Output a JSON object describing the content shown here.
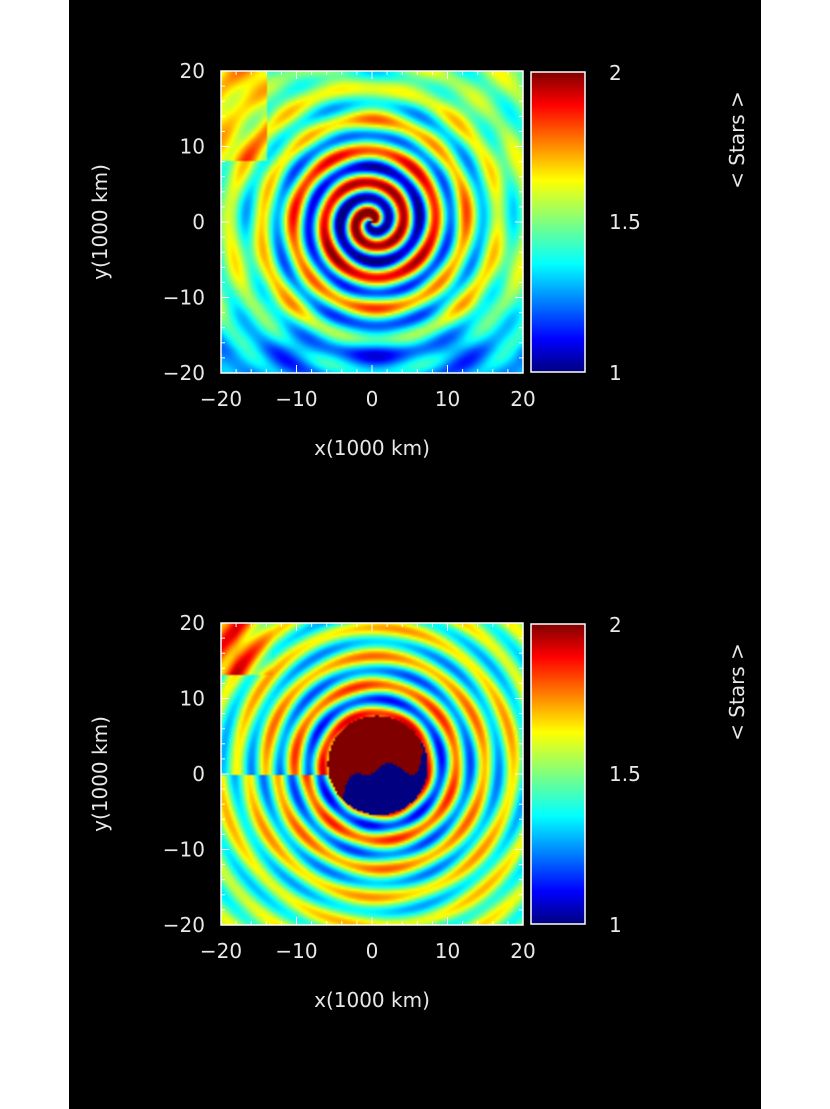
{
  "colors": {
    "background": "#000000",
    "frame": "#ffffff",
    "text": "#e8e8e8",
    "colormap": "jet"
  },
  "chart_data": [
    {
      "type": "heatmap",
      "pattern": "spiral",
      "title": "",
      "xlabel": "x(1000 km)",
      "ylabel": "y(1000 km)",
      "xlim": [
        -20,
        20
      ],
      "ylim": [
        -20,
        20
      ],
      "xticks": [
        "−20",
        "−10",
        "0",
        "10",
        "20"
      ],
      "yticks": [
        "−20",
        "−10",
        "0",
        "10",
        "20"
      ],
      "colorbar": {
        "label": "< Stars >",
        "range": [
          1,
          2
        ],
        "ticks": [
          "1",
          "1.5",
          "2"
        ]
      },
      "grid": false
    },
    {
      "type": "heatmap",
      "pattern": "yin-yang core with concentric rings",
      "title": "",
      "xlabel": "x(1000 km)",
      "ylabel": "y(1000 km)",
      "xlim": [
        -20,
        20
      ],
      "ylim": [
        -20,
        20
      ],
      "xticks": [
        "−20",
        "−10",
        "0",
        "10",
        "20"
      ],
      "yticks": [
        "−20",
        "−10",
        "0",
        "10",
        "20"
      ],
      "colorbar": {
        "label": "< Stars >",
        "range": [
          1,
          2
        ],
        "ticks": [
          "1",
          "1.5",
          "2"
        ]
      },
      "grid": false
    }
  ]
}
